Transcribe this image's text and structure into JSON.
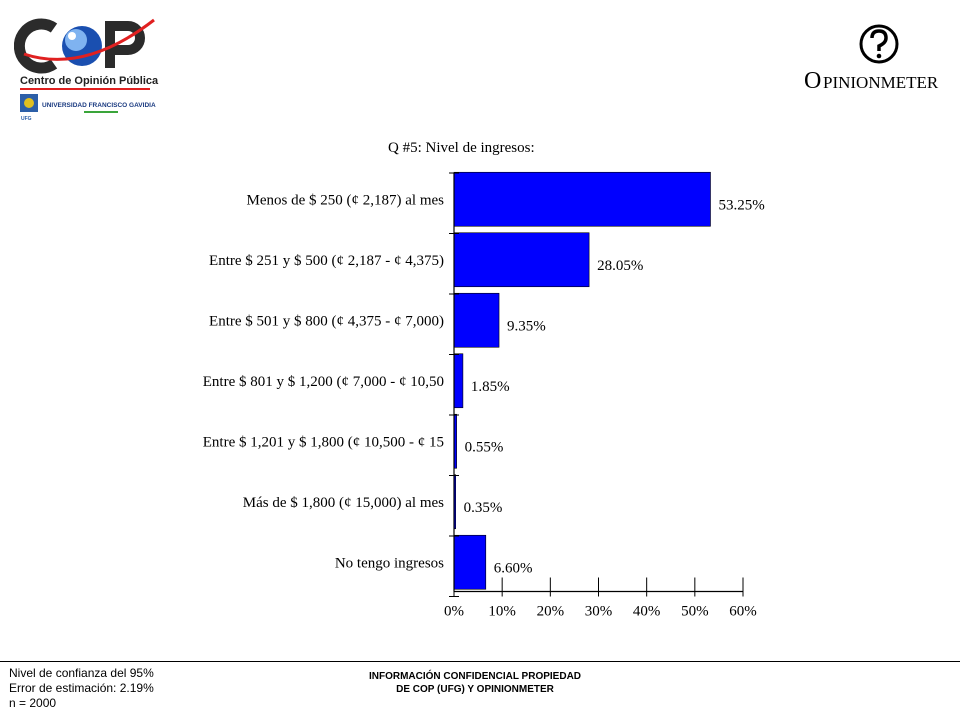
{
  "logo_cop": {
    "org_name": "Centro de Opinión Pública",
    "university": "UNIVERSIDAD FRANCISCO GAVIDIA",
    "wordmark": "COP",
    "seal_text": "UFG"
  },
  "logo_opinionmeter": {
    "name": "OPINIONMETER",
    "icon": "question-mark-circle-icon"
  },
  "chart_data": {
    "type": "bar",
    "orientation": "horizontal",
    "title": "Q #5: Nivel de ingresos:",
    "categories": [
      "Menos de $ 250 (¢ 2,187) al mes",
      "Entre $ 251 y $ 500 (¢ 2,187 - ¢ 4,375)",
      "Entre $ 501 y $ 800 (¢ 4,375 - ¢ 7,000)",
      "Entre $ 801 y $ 1,200 (¢ 7,000 - ¢ 10,50",
      "Entre $ 1,201 y $ 1,800 (¢ 10,500 - ¢ 15",
      "Más de $ 1,800 (¢ 15,000) al mes",
      "No tengo ingresos"
    ],
    "values": [
      53.25,
      28.05,
      9.35,
      1.85,
      0.55,
      0.35,
      6.6
    ],
    "data_labels": [
      "53.25%",
      "28.05%",
      "9.35%",
      "1.85%",
      "0.55%",
      "0.35%",
      "6.60%"
    ],
    "xlim": [
      0,
      60
    ],
    "x_ticks": [
      0,
      10,
      20,
      30,
      40,
      50,
      60
    ],
    "x_tick_labels": [
      "0%",
      "10%",
      "20%",
      "30%",
      "40%",
      "50%",
      "60%"
    ],
    "bar_color": "#0000ff",
    "grid": false,
    "legend": "none"
  },
  "footer": {
    "line1": "Nivel de confianza del 95%",
    "line2": "Error de estimación: 2.19%",
    "line3": "n = 2000",
    "center_line1": "INFORMACIÓN CONFIDENCIAL PROPIEDAD",
    "center_line2": "DE COP (UFG) Y OPINIONMETER"
  }
}
